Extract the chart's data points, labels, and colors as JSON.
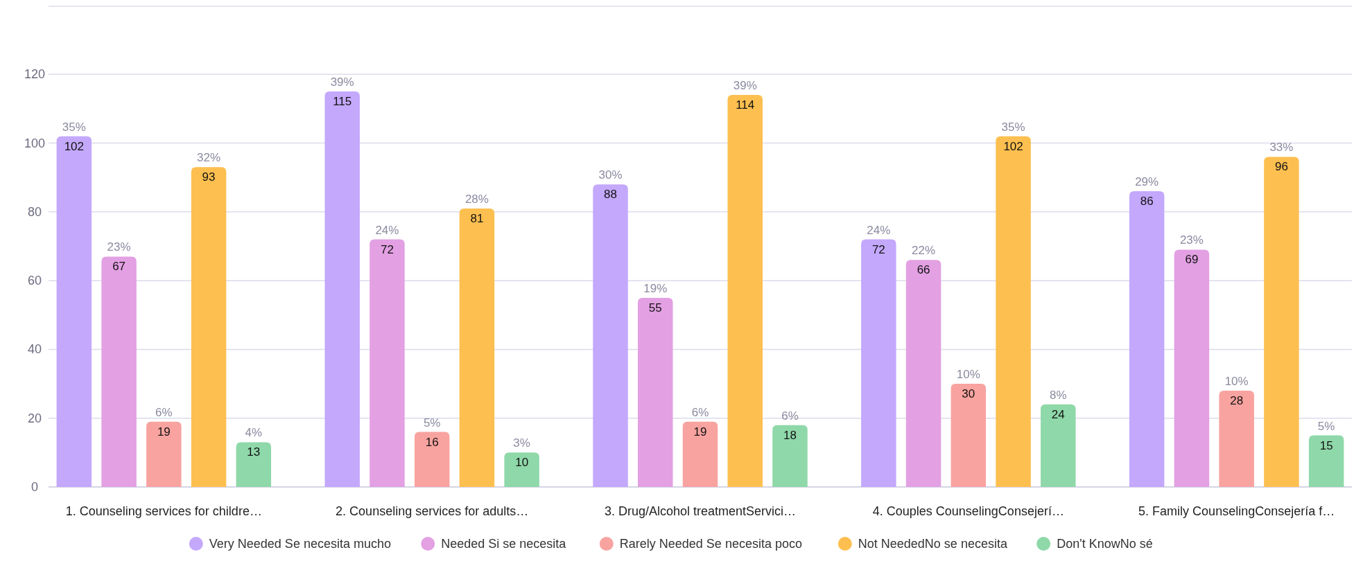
{
  "chart_data": {
    "type": "bar",
    "categories": [
      "1. Counseling services for childre…",
      "2. Counseling services for adults…",
      "3. Drug/Alcohol treatmentServici…",
      "4. Couples CounselingConsejerí…",
      "5. Family CounselingConsejería f…"
    ],
    "series": [
      {
        "name": "Very Needed Se necesita mucho",
        "color": "#c4a8fc",
        "values": [
          102,
          115,
          88,
          72,
          86
        ]
      },
      {
        "name": "Needed Si se necesita",
        "color": "#e3a0e3",
        "values": [
          67,
          72,
          55,
          66,
          69
        ]
      },
      {
        "name": "Rarely Needed Se necesita poco",
        "color": "#f8a3a0",
        "values": [
          19,
          16,
          19,
          30,
          28
        ]
      },
      {
        "name": "Not NeededNo se necesita",
        "color": "#fdbf50",
        "values": [
          93,
          81,
          114,
          102,
          96
        ]
      },
      {
        "name": "Don't KnowNo sé",
        "color": "#8fd8a9",
        "values": [
          13,
          10,
          18,
          24,
          15
        ]
      }
    ],
    "annotations": [
      "35%",
      "23%",
      "6%",
      "32%",
      "4%",
      "39%",
      "24%",
      "5%",
      "28%",
      "3%",
      "30%",
      "19%",
      "6%",
      "39%",
      "6%",
      "24%",
      "22%",
      "10%",
      "35%",
      "8%",
      "29%",
      "23%",
      "10%",
      "33%",
      "5%"
    ],
    "ylim": [
      0,
      140
    ],
    "yticks": [
      0,
      20,
      40,
      60,
      80,
      100,
      120
    ],
    "grid": "y",
    "data_labels": true,
    "legend": "bottom",
    "marker": "circle"
  }
}
